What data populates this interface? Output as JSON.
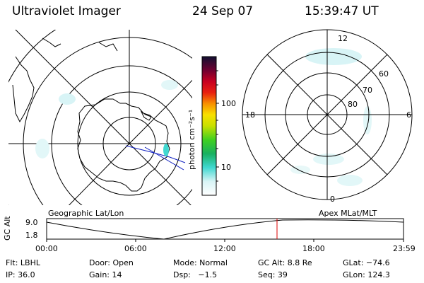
{
  "header": {
    "title": "Ultraviolet Imager",
    "date": "24 Sep 07",
    "time": "15:39:47 UT"
  },
  "colorbar": {
    "unit_label": "photon cm⁻²s⁻¹",
    "ticks": [
      "100",
      "10"
    ]
  },
  "right_plot": {
    "mlt_labels": [
      "12",
      "6",
      "0",
      "18"
    ],
    "mlat_labels": [
      "60",
      "70",
      "80"
    ]
  },
  "timeline": {
    "left_title": "Geographic Lat/Lon",
    "right_title": "Apex MLat/MLT",
    "axis_label": "GC Alt",
    "ytick_top": "9.0",
    "ytick_bottom": "1.8",
    "xticks": [
      "00:00",
      "06:00",
      "12:00",
      "18:00",
      "23:59"
    ],
    "marker_color": "#dd0000"
  },
  "footer": {
    "row1": [
      "Flt: LBHL",
      "Door: Open",
      "Mode: Normal",
      "GC Alt: 8.8 Re",
      "GLat: −74.6"
    ],
    "row2": [
      "IP: 36.0",
      "Gain: 14",
      "Dsp:   −1.5",
      "Seq: 39",
      "GLon: 124.3"
    ]
  }
}
